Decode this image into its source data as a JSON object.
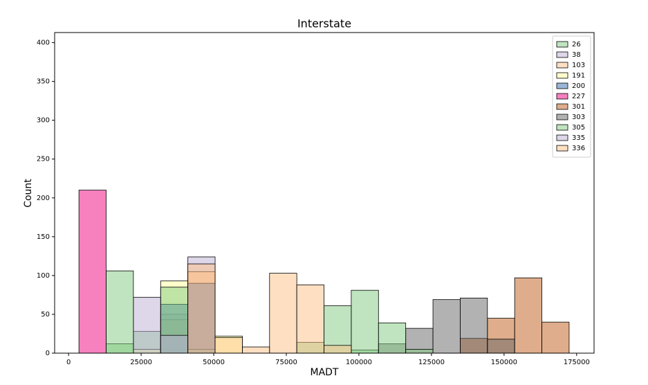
{
  "chart_data": {
    "type": "histogram",
    "title": "Interstate",
    "x_label": "MADT",
    "y_label": "Count",
    "bins": [
      3571,
      12951,
      22331,
      31711,
      41091,
      50471,
      59851,
      69231,
      78611,
      87991,
      97371,
      106751,
      116131,
      125511,
      134891,
      144271,
      153651,
      163031,
      172411
    ],
    "series": [
      {
        "name": "26",
        "color": "#7fc97f",
        "values": [
          0,
          12,
          28,
          5,
          0,
          0,
          0,
          0,
          14,
          0,
          4,
          0,
          0,
          0,
          0,
          0,
          0,
          0
        ]
      },
      {
        "name": "38",
        "color": "#beaed4",
        "values": [
          0,
          0,
          0,
          50,
          124,
          0,
          0,
          0,
          0,
          0,
          0,
          0,
          0,
          0,
          0,
          0,
          0,
          0
        ]
      },
      {
        "name": "103",
        "color": "#fdc086",
        "values": [
          0,
          0,
          0,
          43,
          105,
          0,
          8,
          0,
          0,
          0,
          0,
          0,
          0,
          0,
          0,
          0,
          0,
          0
        ]
      },
      {
        "name": "191",
        "color": "#ffff99",
        "values": [
          0,
          0,
          5,
          93,
          5,
          22,
          0,
          0,
          0,
          0,
          0,
          0,
          0,
          0,
          0,
          0,
          0,
          0
        ]
      },
      {
        "name": "200",
        "color": "#386cb0",
        "values": [
          0,
          0,
          0,
          63,
          90,
          0,
          0,
          0,
          0,
          0,
          0,
          0,
          0,
          0,
          0,
          0,
          0,
          0
        ]
      },
      {
        "name": "227",
        "color": "#f0027f",
        "values": [
          210,
          0,
          0,
          0,
          0,
          0,
          0,
          0,
          0,
          0,
          0,
          0,
          0,
          0,
          0,
          0,
          0,
          0
        ]
      },
      {
        "name": "301",
        "color": "#bf5b17",
        "values": [
          0,
          0,
          0,
          0,
          0,
          0,
          0,
          0,
          0,
          0,
          0,
          0,
          0,
          0,
          19,
          45,
          97,
          40
        ]
      },
      {
        "name": "303",
        "color": "#666666",
        "values": [
          0,
          0,
          0,
          0,
          0,
          0,
          0,
          0,
          0,
          0,
          0,
          12,
          32,
          69,
          71,
          18,
          0,
          0
        ]
      },
      {
        "name": "305",
        "color": "#7fc97f",
        "values": [
          0,
          106,
          0,
          85,
          0,
          0,
          0,
          0,
          0,
          61,
          81,
          39,
          5,
          0,
          0,
          0,
          0,
          0
        ]
      },
      {
        "name": "335",
        "color": "#beaed4",
        "values": [
          0,
          0,
          72,
          23,
          0,
          0,
          0,
          0,
          0,
          0,
          0,
          0,
          0,
          0,
          0,
          0,
          0,
          0
        ]
      },
      {
        "name": "336",
        "color": "#fdc086",
        "values": [
          0,
          0,
          0,
          0,
          115,
          20,
          0,
          103,
          88,
          10,
          0,
          0,
          0,
          0,
          0,
          0,
          0,
          0
        ]
      }
    ],
    "xlim": [
      -4800,
      181000
    ],
    "ylim": [
      0,
      413
    ],
    "xticks": [
      0,
      25000,
      50000,
      75000,
      100000,
      125000,
      150000,
      175000
    ],
    "yticks": [
      0,
      50,
      100,
      150,
      200,
      250,
      300,
      350,
      400
    ],
    "legend": "upper right"
  }
}
